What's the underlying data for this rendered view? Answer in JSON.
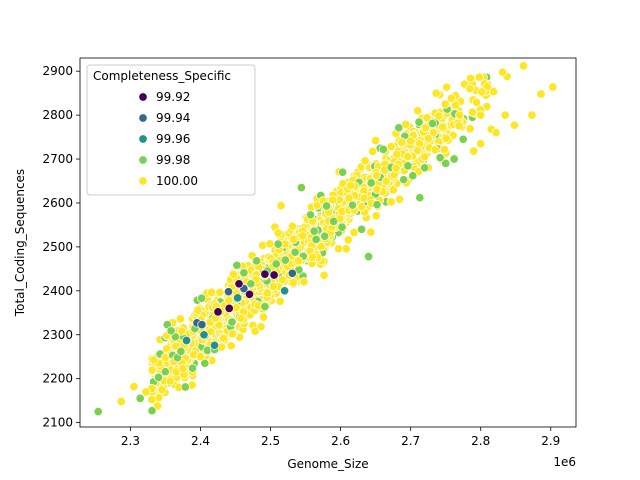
{
  "chart_data": {
    "type": "scatter",
    "xlabel": "Genome_Size",
    "ylabel": "Total_Coding_Sequences",
    "x_offset_label": "1e6",
    "x_scale": 1000000,
    "xlim": [
      2.228,
      2.936
    ],
    "ylim": [
      2090,
      2930
    ],
    "x_ticks": [
      2.3,
      2.4,
      2.5,
      2.6,
      2.7,
      2.8,
      2.9
    ],
    "x_tick_labels": [
      "2.3",
      "2.4",
      "2.5",
      "2.6",
      "2.7",
      "2.8",
      "2.9"
    ],
    "y_ticks": [
      2100,
      2200,
      2300,
      2400,
      2500,
      2600,
      2700,
      2800,
      2900
    ],
    "y_tick_labels": [
      "2100",
      "2200",
      "2300",
      "2400",
      "2500",
      "2600",
      "2700",
      "2800",
      "2900"
    ],
    "grid": false,
    "legend": {
      "title": "Completeness_Specific",
      "placement": "upper-left",
      "entries": [
        {
          "label": "99.92",
          "color": "#440154"
        },
        {
          "label": "99.94",
          "color": "#31688e"
        },
        {
          "label": "99.96",
          "color": "#21918c"
        },
        {
          "label": "99.98",
          "color": "#7ad151"
        },
        {
          "label": "100.00",
          "color": "#fde725"
        }
      ]
    },
    "trend": {
      "description": "approx. linear relationship, ~1600 points, dense band",
      "slope_per_million": 1380,
      "intercept_at_x_2_3": 2160,
      "residual_sd": 40,
      "point_count": 1600
    },
    "series": [
      {
        "name": "99.92",
        "points": [
          [
            2.425,
            2352
          ],
          [
            2.455,
            2416
          ],
          [
            2.492,
            2438
          ],
          [
            2.505,
            2436
          ],
          [
            2.47,
            2392
          ],
          [
            2.441,
            2360
          ]
        ]
      },
      {
        "name": "99.94",
        "points": [
          [
            2.395,
            2327
          ],
          [
            2.44,
            2398
          ],
          [
            2.531,
            2440
          ],
          [
            2.462,
            2405
          ],
          [
            2.402,
            2323
          ]
        ]
      },
      {
        "name": "99.96",
        "points": [
          [
            2.38,
            2287
          ],
          [
            2.42,
            2276
          ],
          [
            2.453,
            2384
          ],
          [
            2.52,
            2400
          ],
          [
            2.405,
            2300
          ]
        ]
      },
      {
        "name": "99.98",
        "points": [
          [
            2.254,
            2125
          ],
          [
            2.314,
            2155
          ],
          [
            2.34,
            2203
          ],
          [
            2.358,
            2309
          ],
          [
            2.372,
            2262
          ],
          [
            2.381,
            2286
          ],
          [
            2.392,
            2314
          ],
          [
            2.42,
            2266
          ],
          [
            2.452,
            2458
          ],
          [
            2.462,
            2441
          ],
          [
            2.48,
            2468
          ],
          [
            2.521,
            2470
          ],
          [
            2.544,
            2635
          ],
          [
            2.557,
            2573
          ],
          [
            2.58,
            2593
          ],
          [
            2.602,
            2545
          ],
          [
            2.603,
            2670
          ],
          [
            2.63,
            2540
          ],
          [
            2.64,
            2478
          ],
          [
            2.661,
            2722
          ],
          [
            2.683,
            2771
          ],
          [
            2.713,
            2612
          ],
          [
            2.731,
            2781
          ],
          [
            2.75,
            2690
          ],
          [
            2.762,
            2700
          ],
          [
            2.535,
            2488
          ],
          [
            2.565,
            2517
          ],
          [
            2.59,
            2558
          ],
          [
            2.617,
            2595
          ],
          [
            2.652,
            2596
          ],
          [
            2.492,
            2364
          ],
          [
            2.445,
            2329
          ],
          [
            2.472,
            2416
          ],
          [
            2.508,
            2461
          ],
          [
            2.69,
            2653
          ],
          [
            2.703,
            2662
          ],
          [
            2.72,
            2680
          ],
          [
            2.742,
            2703
          ],
          [
            2.775,
            2745
          ]
        ]
      },
      {
        "name": "100.00",
        "points": [
          [
            2.287,
            2148
          ],
          [
            2.305,
            2182
          ],
          [
            2.322,
            2170
          ],
          [
            2.345,
            2175
          ],
          [
            2.365,
            2274
          ],
          [
            2.375,
            2223
          ],
          [
            2.4,
            2250
          ],
          [
            2.43,
            2272
          ],
          [
            2.46,
            2456
          ],
          [
            2.478,
            2308
          ],
          [
            2.499,
            2507
          ],
          [
            2.515,
            2594
          ],
          [
            2.54,
            2468
          ],
          [
            2.56,
            2559
          ],
          [
            2.575,
            2605
          ],
          [
            2.598,
            2671
          ],
          [
            2.612,
            2611
          ],
          [
            2.635,
            2696
          ],
          [
            2.65,
            2742
          ],
          [
            2.672,
            2728
          ],
          [
            2.7,
            2741
          ],
          [
            2.721,
            2771
          ],
          [
            2.735,
            2721
          ],
          [
            2.748,
            2722
          ],
          [
            2.758,
            2838
          ],
          [
            2.77,
            2800
          ],
          [
            2.785,
            2769
          ],
          [
            2.8,
            2800
          ],
          [
            2.815,
            2768
          ],
          [
            2.835,
            2800
          ],
          [
            2.848,
            2777
          ],
          [
            2.861,
            2912
          ],
          [
            2.873,
            2800
          ],
          [
            2.886,
            2848
          ],
          [
            2.903,
            2864
          ],
          [
            2.8,
            2735
          ],
          [
            2.79,
            2718
          ],
          [
            2.822,
            2760
          ]
        ]
      }
    ]
  }
}
